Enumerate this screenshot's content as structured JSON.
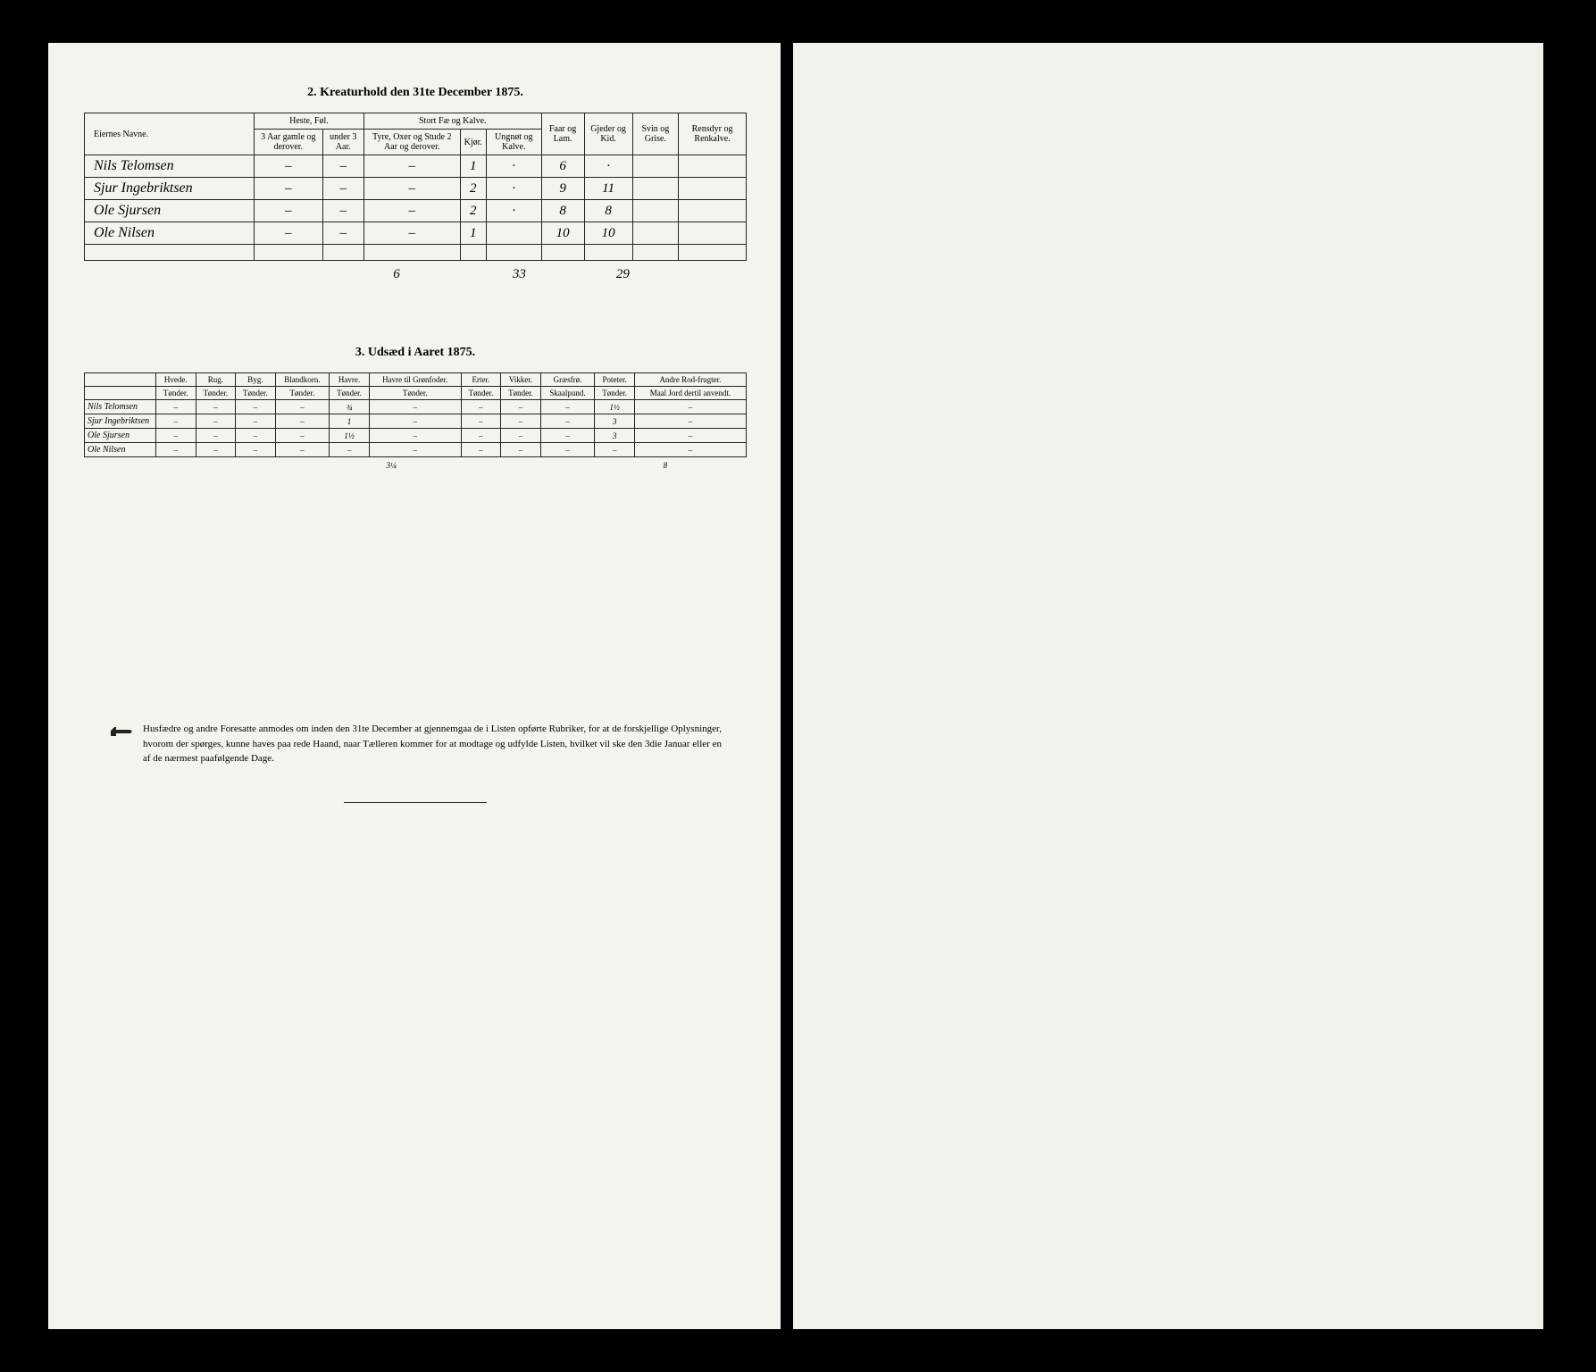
{
  "section1": {
    "title": "2.   Kreaturhold den 31te December 1875.",
    "headers": {
      "name": "Eiernes Navne.",
      "group_horse": "Heste, Føl.",
      "horse_old": "3 Aar gamle og derover.",
      "horse_young": "under 3 Aar.",
      "group_cattle": "Stort Fæ og Kalve.",
      "cattle_bull": "Tyre, Oxer og Stude 2 Aar og derover.",
      "cattle_cow": "Kjør.",
      "cattle_calf": "Ungnøt og Kalve.",
      "sheep": "Faar og Lam.",
      "goat": "Gjeder og Kid.",
      "pig": "Svin og Grise.",
      "reindeer": "Rensdyr og Renkalve."
    },
    "rows": [
      {
        "name": "Nils Telomsen",
        "h1": "–",
        "h2": "–",
        "c1": "–",
        "c2": "1",
        "c3": "·",
        "sheep": "6",
        "goat": "·",
        "pig": "",
        "rein": ""
      },
      {
        "name": "Sjur Ingebriktsen",
        "h1": "–",
        "h2": "–",
        "c1": "–",
        "c2": "2",
        "c3": "·",
        "sheep": "9",
        "goat": "11",
        "pig": "",
        "rein": ""
      },
      {
        "name": "Ole Sjursen",
        "h1": "–",
        "h2": "–",
        "c1": "–",
        "c2": "2",
        "c3": "·",
        "sheep": "8",
        "goat": "8",
        "pig": "",
        "rein": ""
      },
      {
        "name": "Ole Nilsen",
        "h1": "–",
        "h2": "–",
        "c1": "–",
        "c2": "1",
        "c3": "",
        "sheep": "10",
        "goat": "10",
        "pig": "",
        "rein": ""
      }
    ],
    "totals": {
      "c2": "6",
      "sheep": "33",
      "goat": "29"
    }
  },
  "section2": {
    "title": "3.   Udsæd i Aaret 1875.",
    "headers": {
      "hvede": "Hvede.",
      "rug": "Rug.",
      "byg": "Byg.",
      "bland": "Blandkorn.",
      "havre": "Havre.",
      "havre_gron": "Havre til Grønfoder.",
      "erter": "Erter.",
      "vikker": "Vikker.",
      "graes": "Græsfrø.",
      "poteter": "Poteter.",
      "androd": "Andre Rod-frugter.",
      "sub_tonder": "Tønder.",
      "sub_skaal": "Skaalpund.",
      "sub_maal": "Maal Jord dertil anvendt."
    },
    "rows": [
      {
        "name": "Nils Telomsen",
        "havre": "¾",
        "poteter": "1½"
      },
      {
        "name": "Sjur Ingebriktsen",
        "havre": "1",
        "poteter": "3"
      },
      {
        "name": "Ole Sjursen",
        "havre": "1½",
        "poteter": "3"
      },
      {
        "name": "Ole Nilsen",
        "havre": "",
        "poteter": ""
      }
    ],
    "totals": {
      "havre": "3¼",
      "poteter": "8"
    }
  },
  "footnote": "Husfædre og andre Foresatte anmodes om inden den 31te December at gjennemgaa de i Listen opførte Rubriker, for at de forskjellige Oplysninger, hvorom der spørges, kunne haves paa rede Haand, naar Tælleren kommer for at modtage og udfylde Listen, hvilket vil ske den 3die Januar eller en af de nærmest paafølgende Dage."
}
